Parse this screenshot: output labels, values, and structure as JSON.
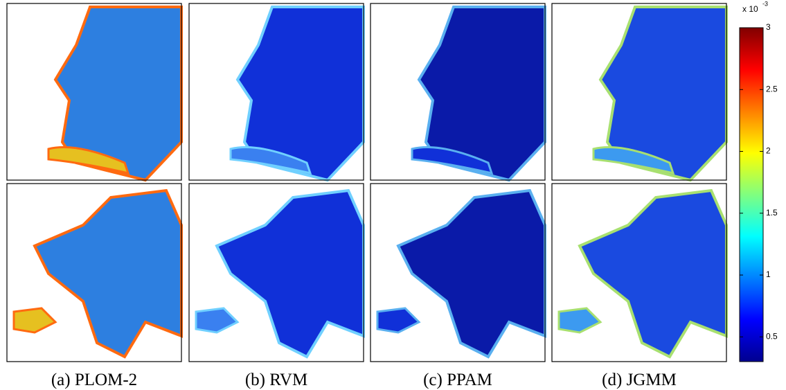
{
  "figure": {
    "captions": [
      "(a) PLOM-2",
      "(b) RVM",
      "(c) PPAM",
      "(d) JGMM"
    ],
    "colorbar": {
      "multiplier": "x 10",
      "exponent": "-3",
      "lim": [
        0.3,
        3
      ],
      "ticks": [
        0.5,
        1,
        1.5,
        2,
        2.5,
        3
      ]
    }
  }
}
